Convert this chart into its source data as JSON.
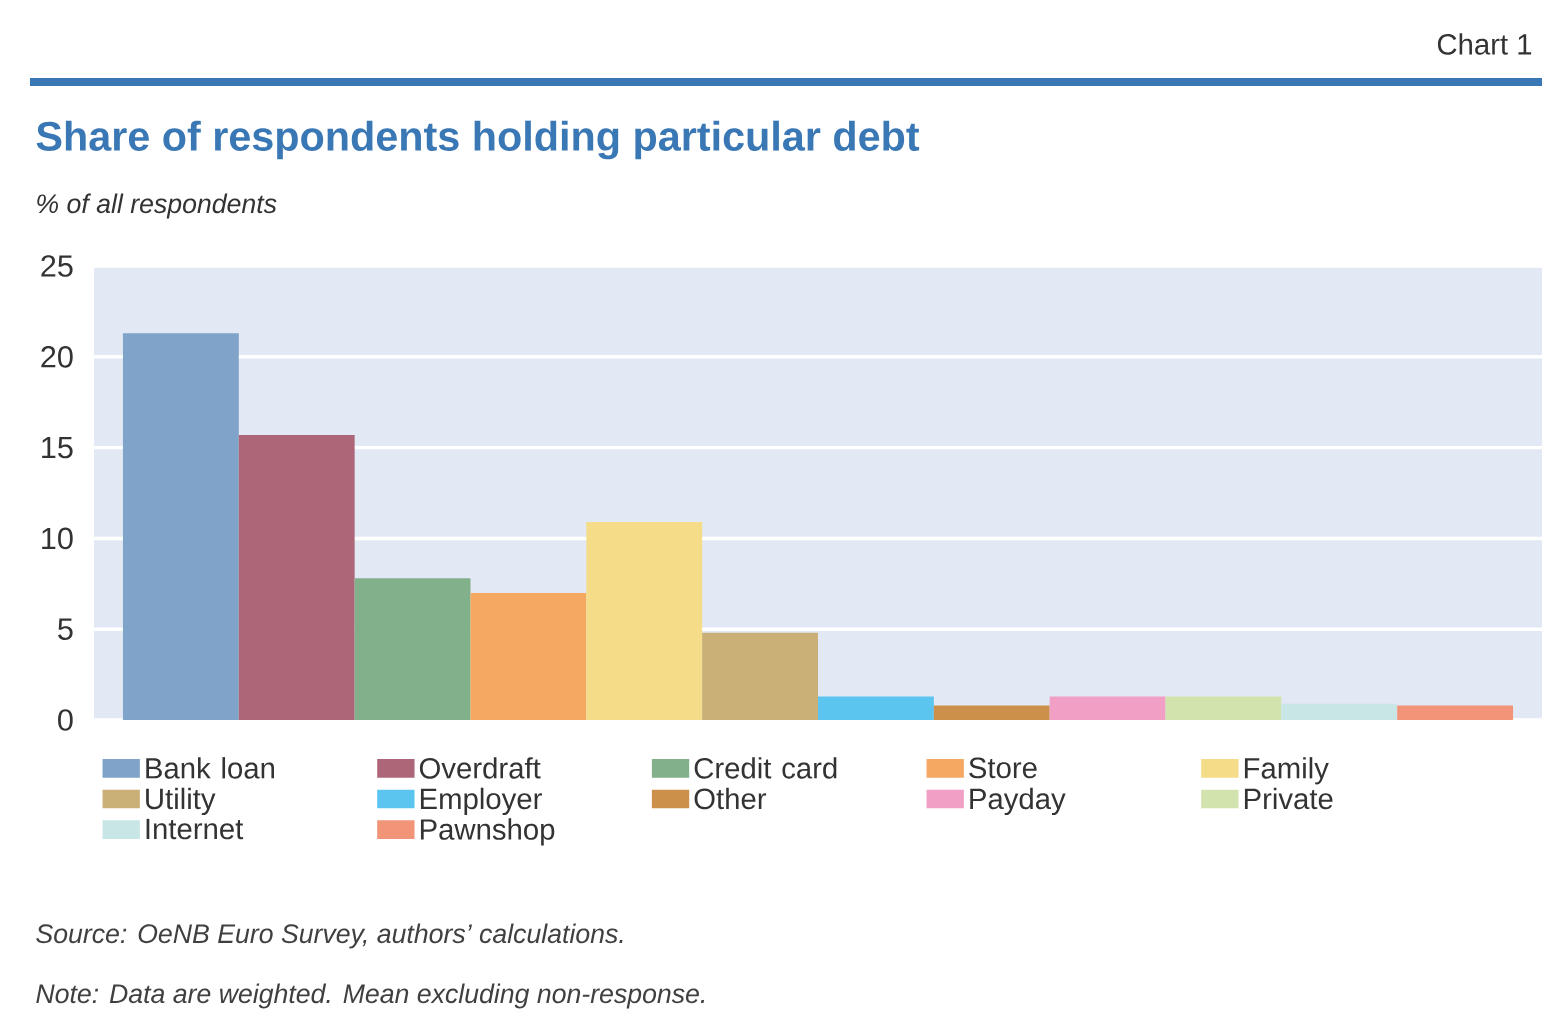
{
  "chart_data": {
    "type": "bar",
    "title": "Share of respondents holding particular debt",
    "ylabel": "% of all respondents",
    "categories": [
      null
    ],
    "series": [
      {
        "name": "Bank loan",
        "color": "#7fa3c9",
        "values": [
          21.3
        ]
      },
      {
        "name": "Overdraft",
        "color": "#ad6677",
        "values": [
          15.7
        ]
      },
      {
        "name": "Credit card",
        "color": "#82b08b",
        "values": [
          7.8
        ]
      },
      {
        "name": "Store",
        "color": "#f4a862",
        "values": [
          7.0
        ]
      },
      {
        "name": "Family",
        "color": "#f4dc88",
        "values": [
          10.9
        ]
      },
      {
        "name": "Utility",
        "color": "#cab076",
        "values": [
          4.8
        ]
      },
      {
        "name": "Employer",
        "color": "#5bc5f0",
        "values": [
          1.3
        ]
      },
      {
        "name": "Other",
        "color": "#cd904a",
        "values": [
          0.8
        ]
      },
      {
        "name": "Payday",
        "color": "#f29fc5",
        "values": [
          1.3
        ]
      },
      {
        "name": "Private",
        "color": "#d3e3ae",
        "values": [
          1.3
        ]
      },
      {
        "name": "Internet",
        "color": "#c8e6e6",
        "values": [
          0.9
        ]
      },
      {
        "name": "Pawnshop",
        "color": "#f29478",
        "values": [
          0.8
        ]
      }
    ],
    "ylim": [
      0,
      25
    ],
    "yticks": [
      0,
      5,
      10,
      15,
      20,
      25
    ],
    "grid": "y",
    "legend": "bottom",
    "annotations": [
      "Chart 1",
      "Source: OeNB Euro Survey, authors’ calculations.",
      "Note: Data are weighted. Mean excluding non-response."
    ]
  }
}
